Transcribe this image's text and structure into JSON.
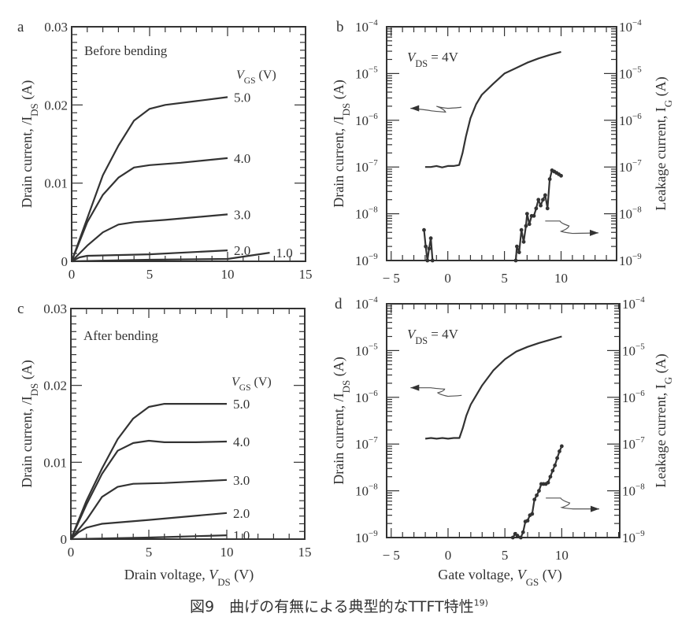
{
  "caption": {
    "text": "図9　曲げの有無による典型的なTTFT特性",
    "ref": "19)"
  },
  "chart_data": [
    {
      "panel": "a",
      "type": "line",
      "yscale": "linear",
      "title": "Before bending",
      "xlim": [
        0,
        15
      ],
      "ylim": [
        0,
        0.03
      ],
      "x_ticks": [
        0,
        5,
        10,
        15
      ],
      "x_tick_labels": [
        "0",
        "5",
        "10",
        "15"
      ],
      "y_ticks": [
        0,
        0.01,
        0.02,
        0.03
      ],
      "y_tick_labels": [
        "0",
        "0.01",
        "0.02",
        "0.03"
      ],
      "xlabel": [],
      "ylabel": [
        {
          "t": "Drain current, /I"
        },
        {
          "t": "DS",
          "sub": true
        },
        {
          "t": " (A)"
        }
      ],
      "legend_title": [
        {
          "t": "V",
          "it": true
        },
        {
          "t": "GS",
          "sub": true
        },
        {
          "t": " (V)"
        }
      ],
      "series": [
        {
          "name": "5.0",
          "x": [
            0,
            1,
            2,
            3,
            4,
            5,
            6,
            8,
            10
          ],
          "y": [
            0,
            0.0055,
            0.011,
            0.0148,
            0.018,
            0.0195,
            0.02,
            0.0205,
            0.021
          ]
        },
        {
          "name": "4.0",
          "x": [
            0,
            1,
            2,
            3,
            4,
            5,
            7,
            10
          ],
          "y": [
            0,
            0.005,
            0.0085,
            0.0107,
            0.012,
            0.0123,
            0.0126,
            0.0132
          ]
        },
        {
          "name": "3.0",
          "x": [
            0,
            1,
            2,
            3,
            4,
            6,
            10
          ],
          "y": [
            0,
            0.002,
            0.0037,
            0.0047,
            0.005,
            0.0053,
            0.006
          ]
        },
        {
          "name": "2.0",
          "x": [
            0,
            0.5,
            1,
            5,
            10
          ],
          "y": [
            0,
            0.0005,
            0.0007,
            0.0009,
            0.0014
          ]
        },
        {
          "name": "1.0",
          "x": [
            0,
            5,
            10,
            12.7
          ],
          "y": [
            0,
            0.0002,
            0.0003,
            0.0011
          ]
        }
      ]
    },
    {
      "panel": "b",
      "type": "line",
      "yscale": "log",
      "title": [
        {
          "t": "V",
          "it": true
        },
        {
          "t": "DS",
          "sub": true
        },
        {
          "t": " = 4V"
        }
      ],
      "xlim": [
        -5.4,
        14.9
      ],
      "ylim": [
        1e-09,
        0.0001
      ],
      "x_ticks": [
        -5,
        0,
        5,
        10
      ],
      "x_tick_labels": [
        "− 5",
        "0",
        "5",
        "10"
      ],
      "y_ticks": [
        -4,
        -5,
        -6,
        -7,
        -8,
        -9
      ],
      "y_tick_labels": [
        "−4",
        "−5",
        "−6",
        "−7",
        "−8",
        "−9"
      ],
      "y_tick_base": "10",
      "xlabel": [],
      "ylabel": [
        {
          "t": "Drain current, /I"
        },
        {
          "t": "DS",
          "sub": true
        },
        {
          "t": " (A)"
        }
      ],
      "ylabel_right": [
        {
          "t": "Leakage current, I"
        },
        {
          "t": "G",
          "sub": true
        },
        {
          "t": " (A)"
        }
      ],
      "series": [
        {
          "name": "I_DS",
          "markers": false,
          "x": [
            -2,
            -1.5,
            -1,
            -0.5,
            0,
            0.5,
            1,
            1.3,
            1.6,
            2,
            2.5,
            3,
            4,
            5,
            6,
            7,
            8,
            9,
            10
          ],
          "y": [
            1e-07,
            1e-07,
            1.05e-07,
            9.8e-08,
            1.05e-07,
            1.05e-07,
            1.1e-07,
            2e-07,
            4.5e-07,
            1.1e-06,
            2.2e-06,
            3.5e-06,
            6e-06,
            1e-05,
            1.3e-05,
            1.7e-05,
            2.1e-05,
            2.5e-05,
            2.9e-05
          ]
        },
        {
          "name": "I_G low",
          "markers": true,
          "x": [
            -2.1,
            -1.95,
            -1.8,
            -1.65,
            -1.5,
            -1.35
          ],
          "y": [
            4.5e-09,
            2e-09,
            1e-09,
            1.8e-09,
            3e-09,
            1e-09
          ]
        },
        {
          "name": "I_G",
          "markers": true,
          "x": [
            6,
            6.1,
            6.3,
            6.5,
            6.7,
            6.9,
            7,
            7.2,
            7.4,
            7.6,
            7.8,
            8,
            8.2,
            8.4,
            8.6,
            8.8,
            9,
            9.2,
            9.4,
            9.6,
            9.8,
            10
          ],
          "y": [
            1e-09,
            2e-09,
            1.5e-09,
            4.5e-09,
            2.5e-09,
            5.5e-09,
            1e-08,
            6e-09,
            9e-09,
            9e-09,
            1.3e-08,
            2e-08,
            1.5e-08,
            2e-08,
            2.5e-08,
            1.3e-08,
            5.5e-08,
            8.5e-08,
            8e-08,
            7.5e-08,
            7e-08,
            6.5e-08
          ]
        }
      ],
      "annotations": [
        {
          "name": "arrow-left-ids",
          "x": [
            1.2,
            0,
            -1,
            -0.2,
            -1.5,
            -3.3
          ],
          "y": [
            1.9e-06,
            1.8e-06,
            2e-06,
            1.5e-06,
            1.6e-06,
            1.8e-06
          ]
        },
        {
          "name": "arrow-right-ig",
          "x": [
            8.6,
            9.9,
            10.7,
            10,
            11,
            13.3
          ],
          "y": [
            7e-09,
            7e-09,
            5.5e-09,
            4.2e-09,
            3.8e-09,
            3.9e-09
          ]
        }
      ]
    },
    {
      "panel": "c",
      "type": "line",
      "yscale": "linear",
      "title": "After bending",
      "xlim": [
        0,
        15
      ],
      "ylim": [
        0,
        0.03
      ],
      "x_ticks": [
        0,
        5,
        10,
        15
      ],
      "x_tick_labels": [
        "0",
        "5",
        "10",
        "15"
      ],
      "y_ticks": [
        0,
        0.01,
        0.02,
        0.03
      ],
      "y_tick_labels": [
        "0",
        "0.01",
        "0.02",
        "0.03"
      ],
      "xlabel": [
        {
          "t": "Drain voltage, "
        },
        {
          "t": "V",
          "it": true
        },
        {
          "t": "DS",
          "sub": true
        },
        {
          "t": " (V)"
        }
      ],
      "ylabel": [
        {
          "t": "Drain current, /I"
        },
        {
          "t": "DS",
          "sub": true
        },
        {
          "t": " (A)"
        }
      ],
      "legend_title": [
        {
          "t": "V",
          "it": true
        },
        {
          "t": "GS",
          "sub": true
        },
        {
          "t": " (V)"
        }
      ],
      "series": [
        {
          "name": "5.0",
          "x": [
            0,
            1,
            2,
            3,
            4,
            5,
            6,
            10
          ],
          "y": [
            0,
            0.005,
            0.0092,
            0.013,
            0.0157,
            0.0172,
            0.0176,
            0.0176
          ]
        },
        {
          "name": "4.0",
          "x": [
            0,
            1,
            2,
            3,
            4,
            5,
            6,
            8,
            10
          ],
          "y": [
            0,
            0.0045,
            0.0085,
            0.0115,
            0.0125,
            0.0128,
            0.0126,
            0.0126,
            0.0127
          ]
        },
        {
          "name": "3.0",
          "x": [
            0,
            1,
            2,
            3,
            4,
            6,
            10
          ],
          "y": [
            0,
            0.0025,
            0.0055,
            0.0068,
            0.0072,
            0.0073,
            0.0077
          ]
        },
        {
          "name": "2.0",
          "x": [
            0,
            0.5,
            1,
            2,
            5,
            10
          ],
          "y": [
            0,
            0.0009,
            0.0015,
            0.002,
            0.0025,
            0.0034
          ]
        },
        {
          "name": "1.0",
          "x": [
            0,
            5,
            10
          ],
          "y": [
            0,
            0.0002,
            0.0005
          ]
        }
      ]
    },
    {
      "panel": "d",
      "type": "line",
      "yscale": "log",
      "title": [
        {
          "t": "V",
          "it": true
        },
        {
          "t": "DS",
          "sub": true
        },
        {
          "t": " = 4V"
        }
      ],
      "xlim": [
        -5.4,
        15.1
      ],
      "ylim": [
        1e-09,
        0.0001
      ],
      "x_ticks": [
        -5,
        0,
        5,
        10
      ],
      "x_tick_labels": [
        "− 5",
        "0",
        "5",
        "10"
      ],
      "y_ticks": [
        -4,
        -5,
        -6,
        -7,
        -8,
        -9
      ],
      "y_tick_labels": [
        "−4",
        "−5",
        "−6",
        "−7",
        "−8",
        "−9"
      ],
      "y_tick_base": "10",
      "xlabel": [
        {
          "t": "Gate voltage, "
        },
        {
          "t": "V",
          "it": true
        },
        {
          "t": "GS",
          "sub": true
        },
        {
          "t": " (V)"
        }
      ],
      "ylabel": [
        {
          "t": "Drain current, /I"
        },
        {
          "t": "DS",
          "sub": true
        },
        {
          "t": " (A)"
        }
      ],
      "ylabel_right": [
        {
          "t": "Leakage current, I"
        },
        {
          "t": "G",
          "sub": true
        },
        {
          "t": " (A)"
        }
      ],
      "series": [
        {
          "name": "I_DS",
          "markers": false,
          "x": [
            -2,
            -1.5,
            -1,
            -0.5,
            0,
            0.5,
            1,
            1.3,
            1.6,
            2,
            3,
            4,
            5,
            6,
            7,
            8,
            9,
            10
          ],
          "y": [
            1.3e-07,
            1.35e-07,
            1.3e-07,
            1.35e-07,
            1.3e-07,
            1.35e-07,
            1.35e-07,
            2.2e-07,
            4e-07,
            7e-07,
            1.8e-06,
            3.8e-06,
            6.5e-06,
            9.5e-06,
            1.2e-05,
            1.45e-05,
            1.7e-05,
            2e-05
          ]
        },
        {
          "name": "I_G",
          "markers": true,
          "x": [
            5.7,
            5.9,
            6.1,
            6.4,
            6.6,
            6.8,
            7,
            7.2,
            7.4,
            7.6,
            7.8,
            8,
            8.2,
            8.4,
            8.6,
            8.8,
            9,
            9.2,
            9.4,
            9.6,
            9.8,
            10
          ],
          "y": [
            1e-09,
            1.2e-09,
            1.1e-09,
            1e-09,
            1.3e-09,
            2.2e-09,
            2.3e-09,
            3e-09,
            3.2e-09,
            6.5e-09,
            8e-09,
            1e-08,
            1.4e-08,
            1.4e-08,
            1.4e-08,
            1.5e-08,
            2e-08,
            2.7e-08,
            3.5e-08,
            5e-08,
            7e-08,
            9e-08
          ]
        }
      ],
      "annotations": [
        {
          "name": "arrow-left-ids",
          "x": [
            1.2,
            0,
            -0.9,
            -0.3,
            -1.5,
            -3.3
          ],
          "y": [
            1.1e-06,
            1.05e-06,
            1.25e-06,
            1.5e-06,
            1.6e-06,
            1.6e-06
          ]
        },
        {
          "name": "arrow-right-ig",
          "x": [
            8.6,
            9.9,
            10.7,
            10,
            11,
            13.3
          ],
          "y": [
            7e-09,
            7e-09,
            5.5e-09,
            4.4e-09,
            4.1e-09,
            4.1e-09
          ]
        }
      ]
    }
  ]
}
